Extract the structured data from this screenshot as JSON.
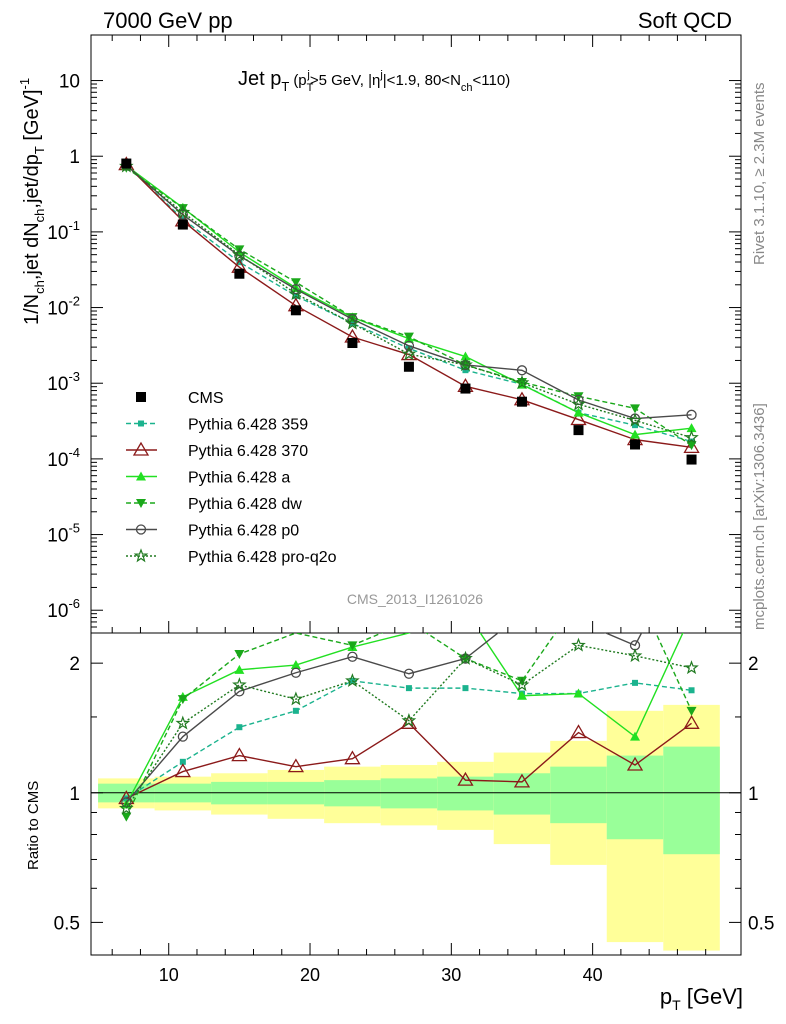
{
  "header": {
    "energy_label": "7000 GeV pp",
    "process_label": "Soft QCD",
    "plot_title_main": "Jet p",
    "plot_title_sub": "T",
    "plot_title_cut": "(p",
    "plot_title_cut_sub": "T",
    "plot_title_cut_sup": "j",
    "plot_title_rest": ">5 GeV, |η",
    "plot_title_rest_sup": "j",
    "plot_title_rest2": "|<1.9, 80<N",
    "plot_title_rest2_sub": "ch",
    "plot_title_rest3": "<110)",
    "analysis_id": "CMS_2013_I1261026",
    "side_label_top": "Rivet 3.1.10, ≥ 2.3M events",
    "side_label_bottom": "mcplots.cern.ch [arXiv:1306.3436]"
  },
  "axes": {
    "ylabel_main": "1/N_ch,jet dN_ch,jet/dp_T [GeV]^-1",
    "ylabel_ratio": "Ratio to CMS",
    "xlabel": "p_T [GeV]",
    "x_ticks": [
      "10",
      "20",
      "30",
      "40"
    ],
    "y_main_ticks": [
      "10",
      "1",
      "10^-1",
      "10^-2",
      "10^-3",
      "10^-4",
      "10^-5",
      "10^-6"
    ],
    "y_ratio_ticks": [
      "0.5",
      "1",
      "2"
    ]
  },
  "legend": {
    "entries": [
      "CMS",
      "Pythia 6.428 359",
      "Pythia 6.428 370",
      "Pythia 6.428 a",
      "Pythia 6.428 dw",
      "Pythia 6.428 p0",
      "Pythia 6.428 pro-q2o"
    ]
  },
  "colors": {
    "cms": "#000000",
    "p359": "#1bb38e",
    "p370": "#8b1a1a",
    "pa": "#22e022",
    "pdw": "#1aa81a",
    "pp0": "#4a4a4a",
    "pproq2o": "#207a20",
    "band_outer": "#ffff99",
    "band_inner": "#99ff99"
  },
  "chart_data": {
    "type": "line",
    "x": [
      7,
      11,
      15,
      19,
      23,
      27,
      31,
      35,
      39,
      43,
      47
    ],
    "xlim": [
      4.5,
      50.5
    ],
    "ylim_main": [
      5e-07,
      40
    ],
    "ylim_ratio": [
      0.42,
      2.35
    ],
    "y_log": true,
    "data": {
      "name": "CMS",
      "values": [
        0.8,
        0.125,
        0.028,
        0.0092,
        0.0034,
        0.00165,
        0.00085,
        0.00057,
        0.00024,
        0.000155,
        9.8e-05
      ],
      "ratio_band_inner": [
        0.05,
        0.05,
        0.06,
        0.06,
        0.07,
        0.08,
        0.09,
        0.11,
        0.15,
        0.22,
        0.28
      ],
      "ratio_band_outer": [
        0.08,
        0.09,
        0.11,
        0.13,
        0.15,
        0.16,
        0.18,
        0.24,
        0.32,
        0.55,
        0.6
      ]
    },
    "series": [
      {
        "name": "Pythia 6.428 359",
        "ratio": [
          0.97,
          1.18,
          1.42,
          1.55,
          1.82,
          1.75,
          1.75,
          1.7,
          1.7,
          1.8,
          1.73
        ]
      },
      {
        "name": "Pythia 6.428 370",
        "ratio": [
          0.97,
          1.12,
          1.22,
          1.15,
          1.2,
          1.45,
          1.07,
          1.06,
          1.38,
          1.16,
          1.45
        ]
      },
      {
        "name": "Pythia 6.428 a",
        "ratio": [
          0.94,
          1.67,
          1.93,
          1.98,
          2.18,
          2.35,
          2.65,
          1.68,
          1.7,
          1.35,
          2.6
        ]
      },
      {
        "name": "Pythia 6.428 dw",
        "ratio": [
          0.88,
          1.65,
          2.1,
          2.35,
          2.2,
          2.5,
          2.05,
          1.82,
          2.8,
          3.0,
          1.55
        ]
      },
      {
        "name": "Pythia 6.428 p0",
        "ratio": [
          0.95,
          1.35,
          1.72,
          1.9,
          2.07,
          1.89,
          2.05,
          2.6,
          2.5,
          2.2,
          3.9
        ]
      },
      {
        "name": "Pythia 6.428 pro-q2o",
        "ratio": [
          0.92,
          1.45,
          1.78,
          1.65,
          1.82,
          1.47,
          2.05,
          1.78,
          2.2,
          2.08,
          1.95
        ]
      }
    ]
  }
}
